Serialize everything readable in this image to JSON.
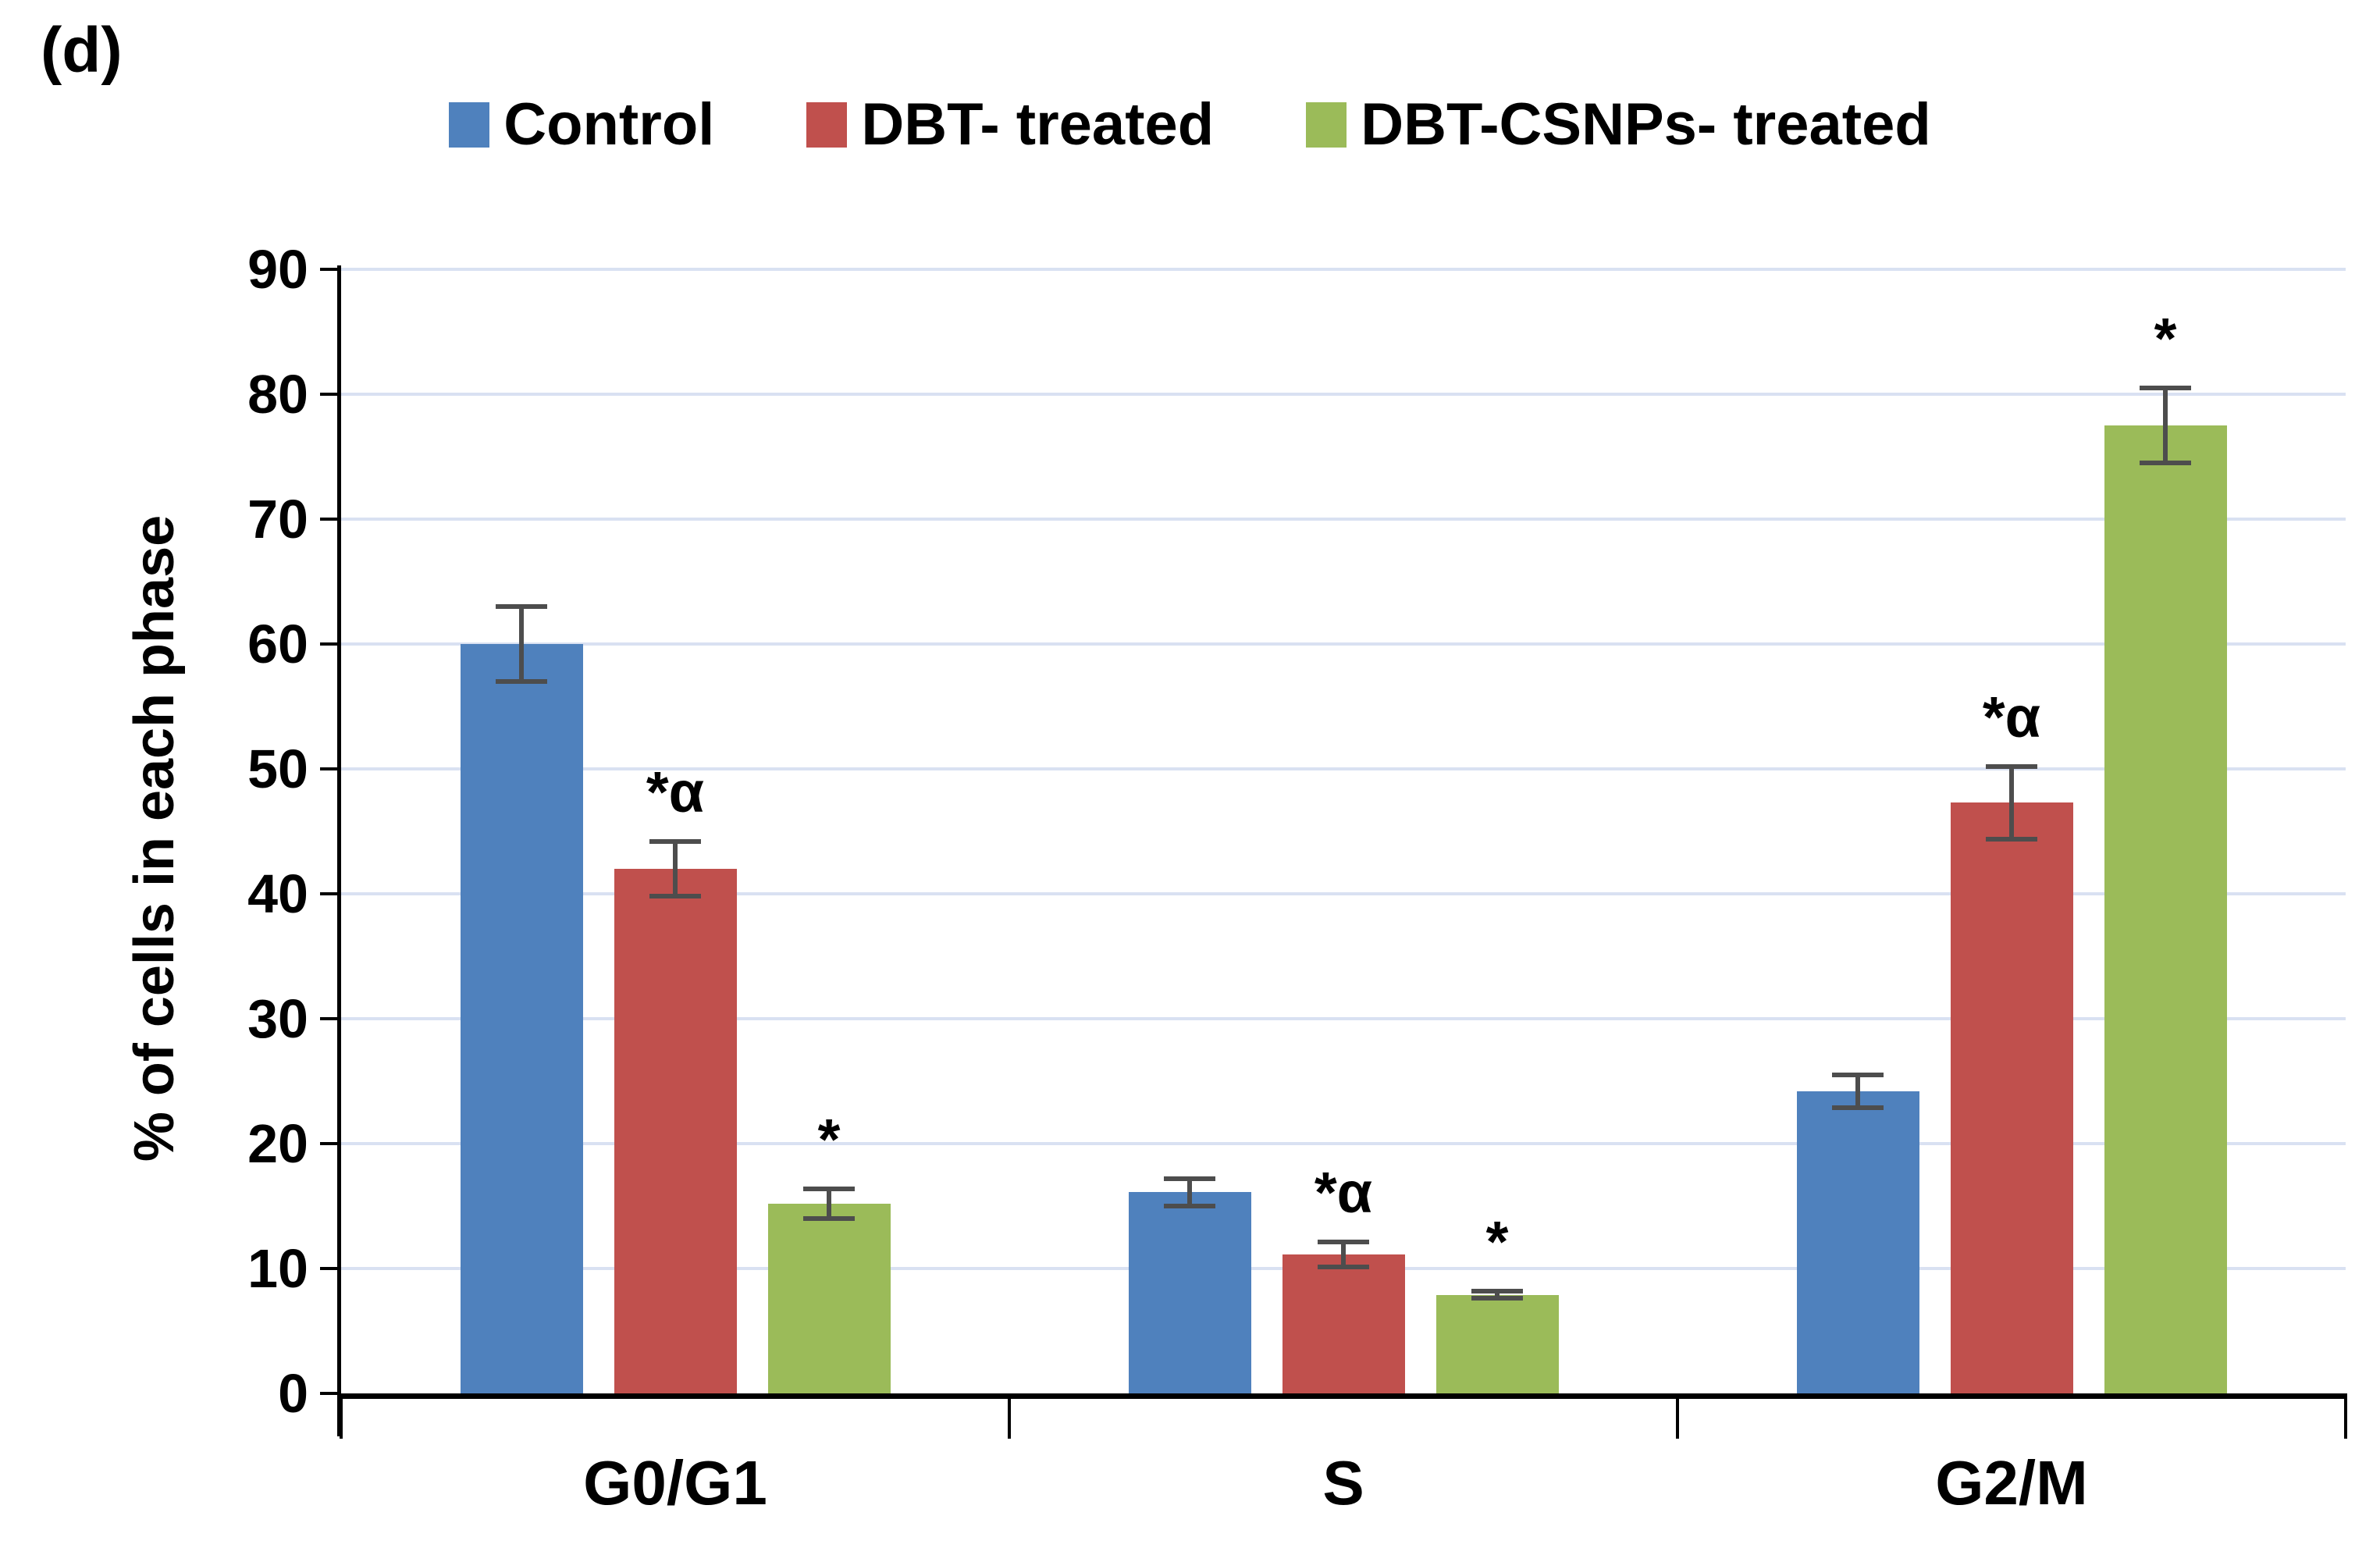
{
  "figure": {
    "panel_label": "(d)"
  },
  "chart_data": {
    "type": "bar",
    "title": "",
    "xlabel": "",
    "ylabel": "% of cells in each phase",
    "categories": [
      "G0/G1",
      "S",
      "G2/M"
    ],
    "ylim": [
      0,
      90
    ],
    "yticks": [
      0,
      10,
      20,
      30,
      40,
      50,
      60,
      70,
      80,
      90
    ],
    "grid": "horizontal-light-blue",
    "legend_position": "top-center",
    "series": [
      {
        "name": "Control",
        "color": "#4F81BD",
        "values": [
          60,
          16.1,
          24.2
        ],
        "errors": [
          3,
          1.1,
          1.3
        ],
        "annotations": [
          "",
          "",
          ""
        ]
      },
      {
        "name": "DBT- treated",
        "color": "#C0504D",
        "values": [
          42,
          11.1,
          47.3
        ],
        "errors": [
          2.2,
          1.0,
          2.9
        ],
        "annotations": [
          "*α",
          "*α",
          "*α"
        ]
      },
      {
        "name": "DBT-CSNPs- treated",
        "color": "#9BBB59",
        "values": [
          15.2,
          7.9,
          77.5
        ],
        "errors": [
          1.2,
          0.3,
          3.0
        ],
        "annotations": [
          "*",
          "*",
          "*"
        ]
      }
    ],
    "error_bar_color": "#4D4D4D",
    "gridline_color": "#D9E1F2",
    "axis_color": "#000000"
  }
}
